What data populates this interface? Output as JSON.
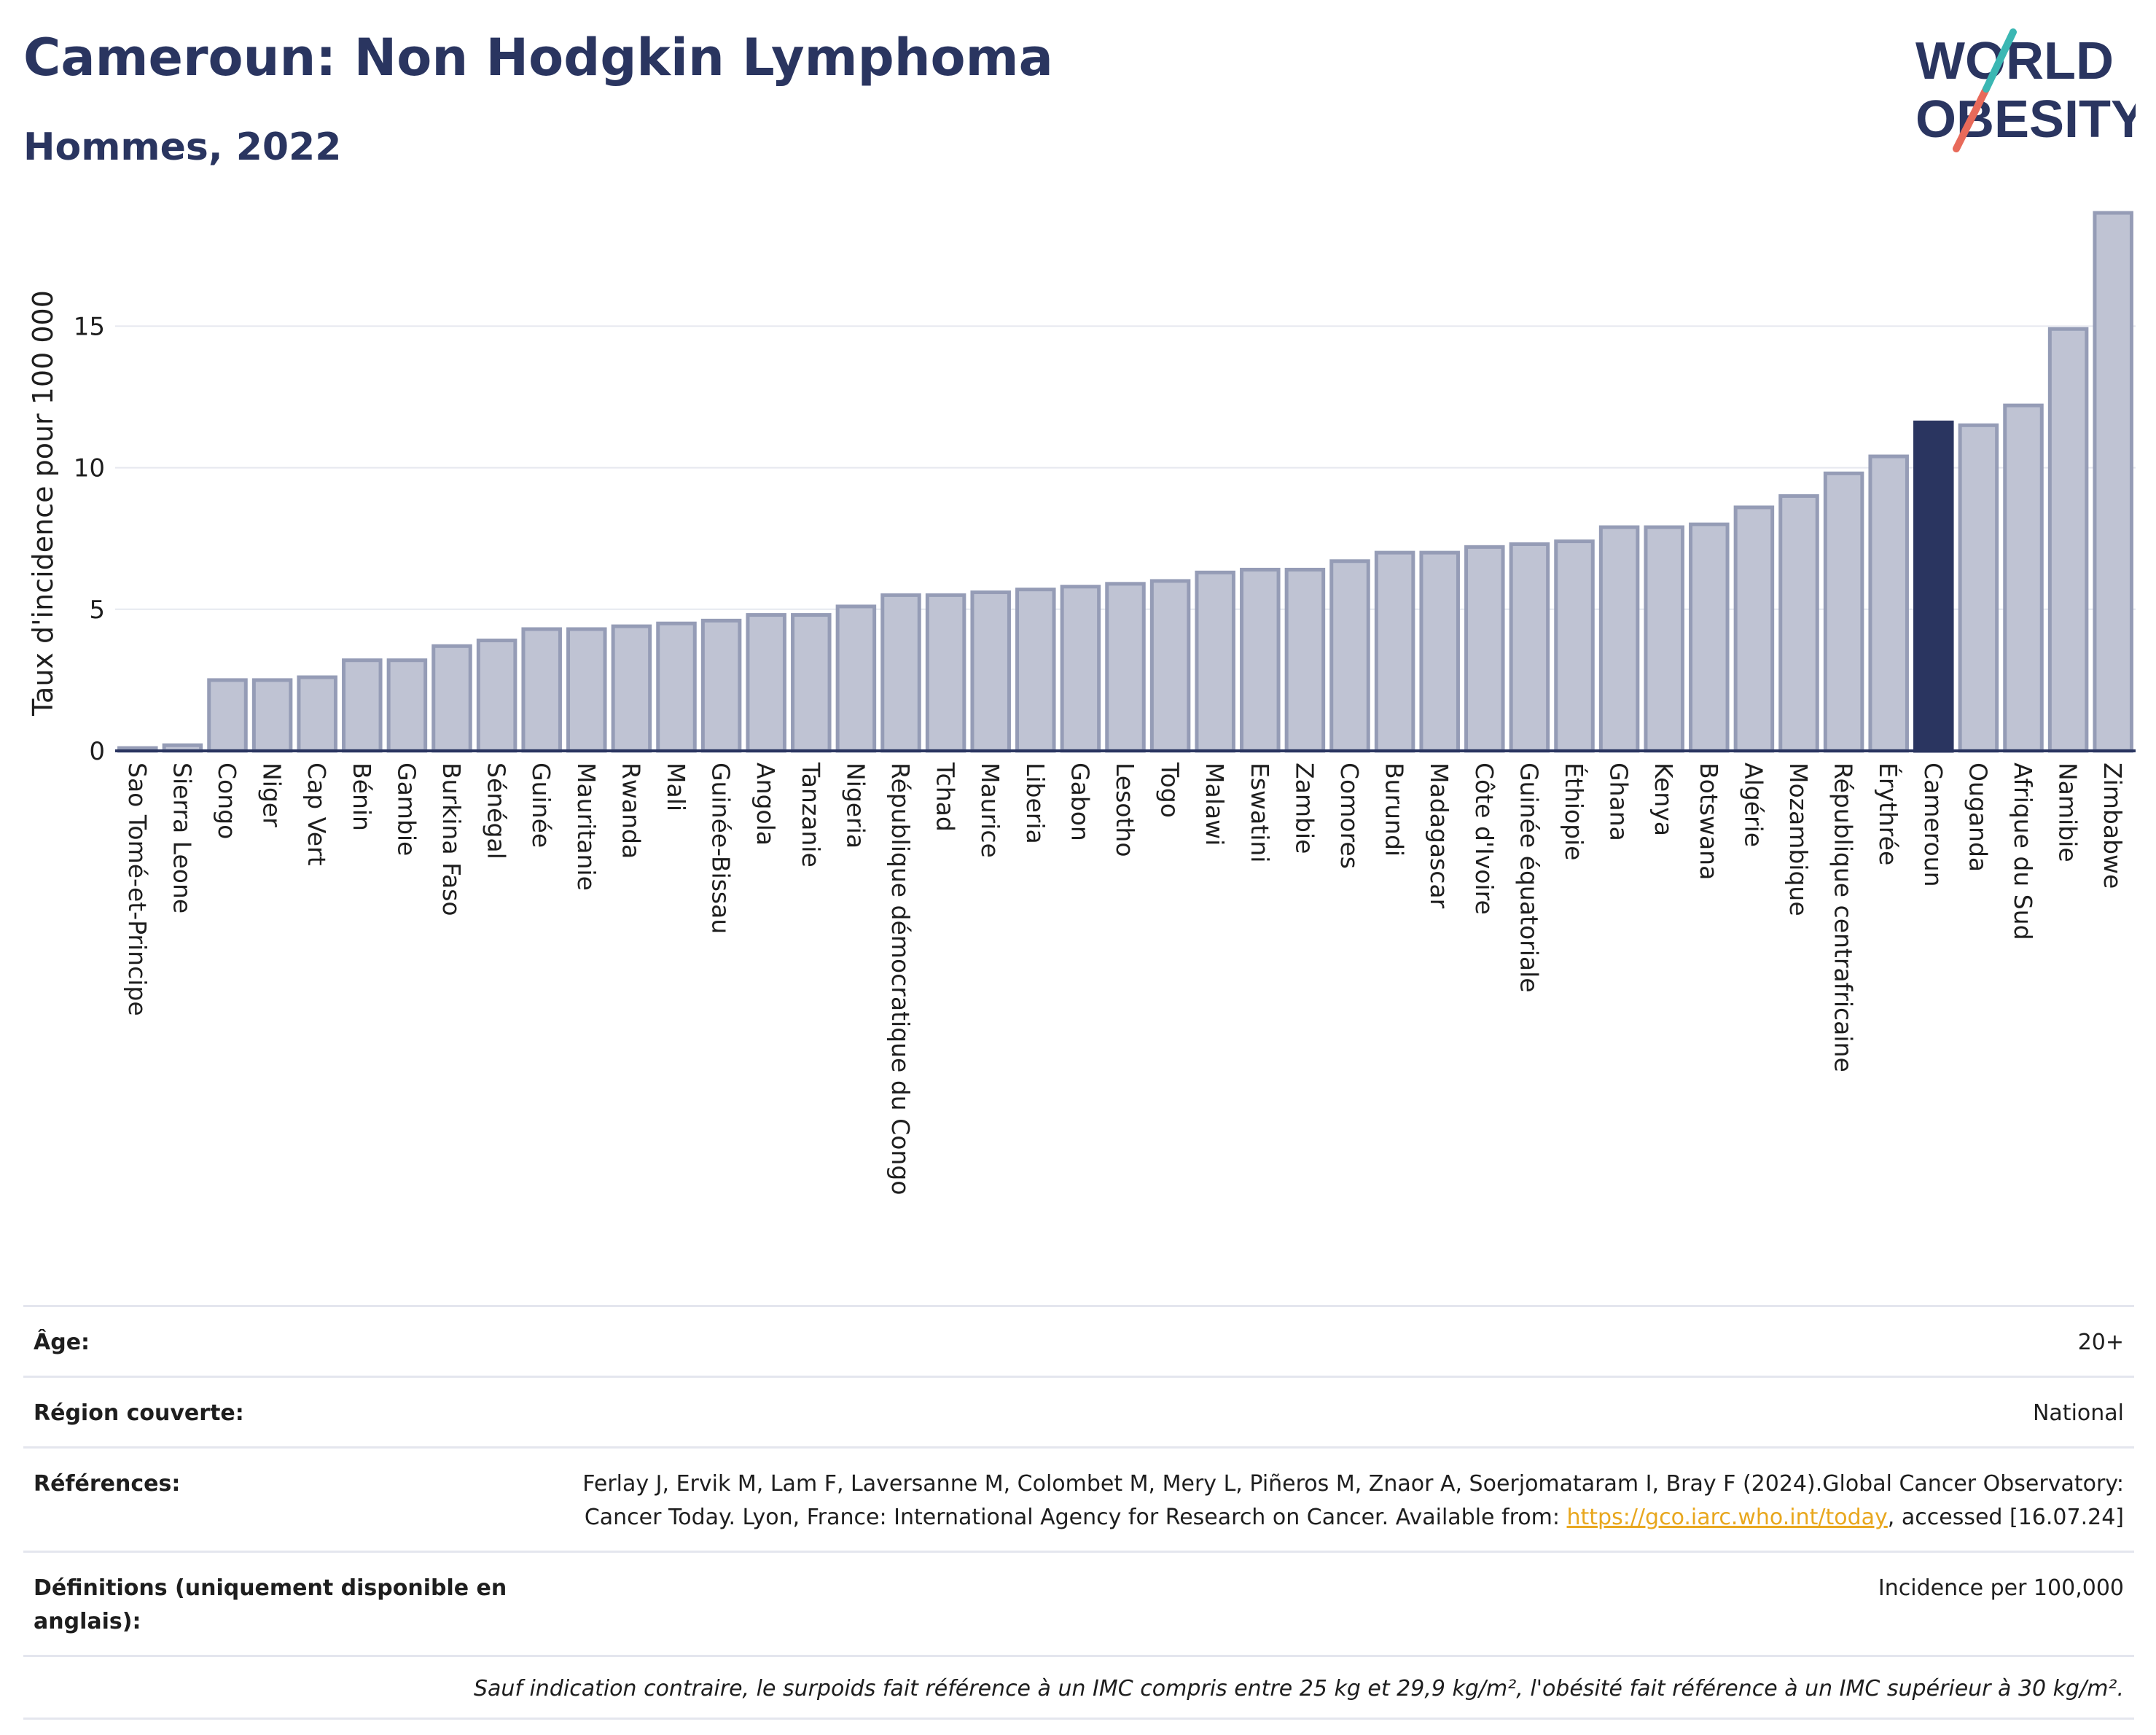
{
  "header": {
    "title": "Cameroun: Non Hodgkin Lymphoma",
    "subtitle": "Hommes, 2022"
  },
  "logo": {
    "line1": "WORLD",
    "line2": "OBESITY"
  },
  "chart_data": {
    "type": "bar",
    "ylabel": "Taux d'incidence pour 100 000",
    "ylim": [
      0,
      19
    ],
    "yticks": [
      0,
      5,
      10,
      15
    ],
    "grid": true,
    "highlight": "Cameroun",
    "colors": {
      "bar": "#bfc3d3",
      "bar_edge": "#959cb6",
      "highlight": "#2a3560"
    },
    "categories": [
      "Sao Tomé-et-Principe",
      "Sierra Leone",
      "Congo",
      "Niger",
      "Cap Vert",
      "Bénin",
      "Gambie",
      "Burkina Faso",
      "Sénégal",
      "Guinée",
      "Mauritanie",
      "Rwanda",
      "Mali",
      "Guinée-Bissau",
      "Angola",
      "Tanzanie",
      "Nigeria",
      "République démocratique du Congo",
      "Tchad",
      "Maurice",
      "Liberia",
      "Gabon",
      "Lesotho",
      "Togo",
      "Malawi",
      "Eswatini",
      "Zambie",
      "Comores",
      "Burundi",
      "Madagascar",
      "Côte d'Ivoire",
      "Guinée équatoriale",
      "Éthiopie",
      "Ghana",
      "Kenya",
      "Botswana",
      "Algérie",
      "Mozambique",
      "République centrafricaine",
      "Érythrée",
      "Cameroun",
      "Ouganda",
      "Afrique du Sud",
      "Namibie",
      "Zimbabwe"
    ],
    "values": [
      0.1,
      0.2,
      2.5,
      2.5,
      2.6,
      3.2,
      3.2,
      3.7,
      3.9,
      4.3,
      4.3,
      4.4,
      4.5,
      4.6,
      4.8,
      4.8,
      5.1,
      5.5,
      5.5,
      5.6,
      5.7,
      5.8,
      5.9,
      6.0,
      6.3,
      6.4,
      6.4,
      6.7,
      7.0,
      7.0,
      7.2,
      7.3,
      7.4,
      7.9,
      7.9,
      8.0,
      8.6,
      9.0,
      9.8,
      10.4,
      11.6,
      11.5,
      12.2,
      14.9,
      19.0
    ]
  },
  "meta": {
    "age_label": "Âge:",
    "age_value": "20+",
    "region_label": "Région couverte:",
    "region_value": "National",
    "refs_label": "Références:",
    "refs_text1": "Ferlay J, Ervik M, Lam F, Laversanne M, Colombet M, Mery L, Piñeros M, Znaor A, Soerjomataram I, Bray F (2024).Global Cancer Observatory: Cancer Today. Lyon, France: International Agency for Research on Cancer. Available from: ",
    "refs_link": "https://gco.iarc.who.int/today",
    "refs_text2": ", accessed [16.07.24]",
    "defs_label": "Définitions (uniquement disponible en anglais):",
    "defs_value": "Incidence per 100,000",
    "note": "Sauf indication contraire, le surpoids fait référence à un IMC compris entre 25 kg et 29,9 kg/m², l'obésité fait référence à un IMC supérieur à 30 kg/m²."
  }
}
